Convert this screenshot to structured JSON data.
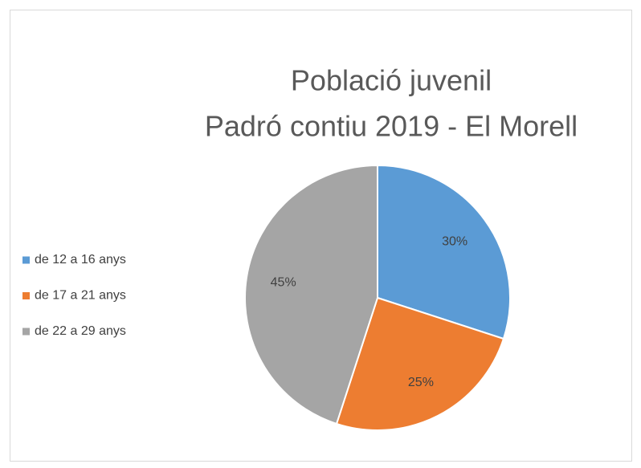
{
  "chart_data": {
    "type": "pie",
    "title": "Població juvenil",
    "subtitle": "Padró contiu 2019 - El Morell",
    "categories": [
      "de 12 a 16 anys",
      "de 17 a 21 anys",
      "de 22 a 29 anys"
    ],
    "values": [
      30,
      25,
      45
    ],
    "value_labels": [
      "30%",
      "25%",
      "45%"
    ],
    "colors": [
      "#5b9bd5",
      "#ed7d31",
      "#a5a5a5"
    ],
    "legend": "left"
  }
}
